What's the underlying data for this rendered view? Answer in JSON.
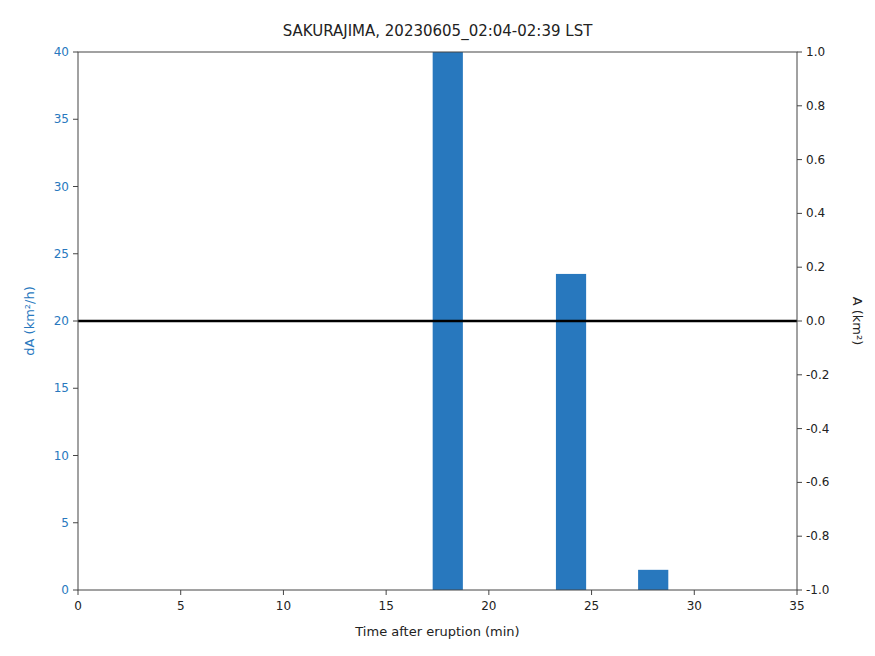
{
  "chart_data": {
    "type": "bar",
    "title": "SAKURAJIMA, 20230605_02:04-02:39 LST",
    "xlabel": "Time after eruption (min)",
    "ylabel": "dA (km²/h)",
    "y2label": "A (km²)",
    "x": [
      18,
      24,
      28
    ],
    "values": [
      40,
      23.5,
      1.5
    ],
    "color": "#2878be",
    "xlim": [
      0,
      35
    ],
    "xticks": [
      0,
      5,
      10,
      15,
      20,
      25,
      30,
      35
    ],
    "ylim": [
      0,
      40
    ],
    "yticks": [
      0,
      5,
      10,
      15,
      20,
      25,
      30,
      35,
      40
    ],
    "y2lim": [
      -1,
      1
    ],
    "y2ticks": [
      {
        "value": -1.0,
        "label": "-1.0"
      },
      -0.8,
      -0.6,
      -0.4,
      -0.2,
      {
        "value": 0,
        "label": "0.0"
      },
      0.2,
      0.4,
      0.6,
      0.8,
      {
        "value": 1.0,
        "label": "1.0"
      }
    ],
    "hline": {
      "y": 20,
      "color": "black"
    },
    "grid": false
  }
}
